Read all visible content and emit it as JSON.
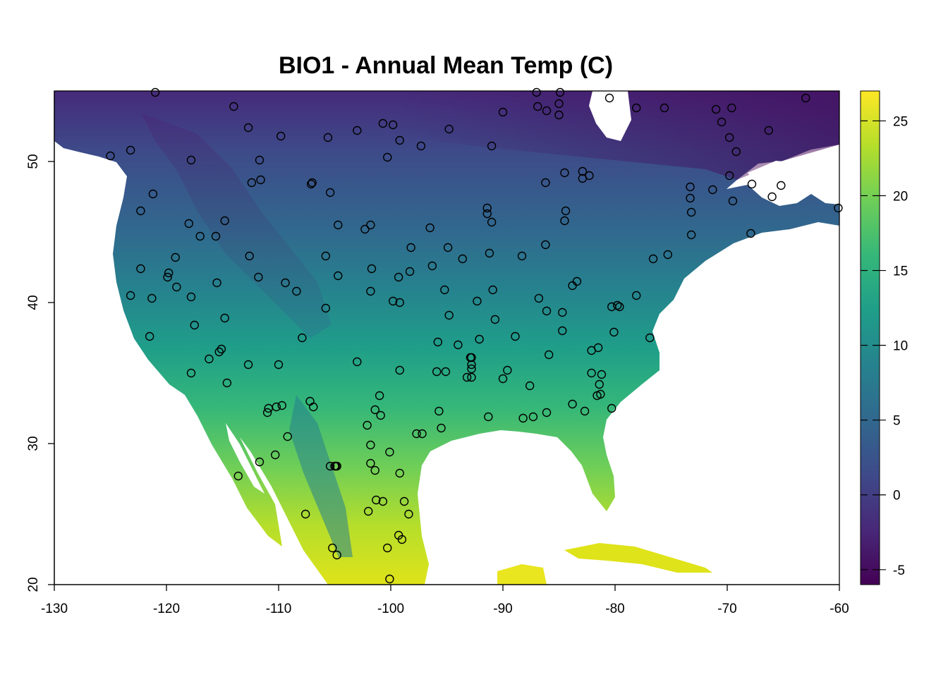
{
  "title": "BIO1 - Annual Mean Temp (C)",
  "chart_data": {
    "type": "scatter",
    "title": "BIO1 - Annual Mean Temp (C)",
    "xlim": [
      -130,
      -60
    ],
    "ylim": [
      20,
      55
    ],
    "x_ticks": [
      -130,
      -120,
      -110,
      -100,
      -90,
      -80,
      -70,
      -60
    ],
    "y_ticks": [
      20,
      30,
      40,
      50
    ],
    "x_tick_labels": [
      "-130",
      "-120",
      "-110",
      "-100",
      "-90",
      "-80",
      "-70",
      "-60"
    ],
    "y_tick_labels": [
      "20",
      "30",
      "40",
      "50"
    ],
    "raster_variable": "Annual Mean Temp (C)",
    "colorbar": {
      "min": -6,
      "max": 27,
      "ticks": [
        -5,
        0,
        5,
        10,
        15,
        20,
        25
      ],
      "tick_labels": [
        "-5",
        "0",
        "5",
        "10",
        "15",
        "20",
        "25"
      ],
      "palette": [
        "#440154",
        "#482878",
        "#3e4a89",
        "#31688e",
        "#26828e",
        "#1f9e89",
        "#35b779",
        "#6ece58",
        "#b5de2b",
        "#fde725"
      ]
    },
    "points": [
      [
        -125.0,
        50.4
      ],
      [
        -123.2,
        50.8
      ],
      [
        -121.0,
        54.9
      ],
      [
        -114.0,
        53.9
      ],
      [
        -112.7,
        52.4
      ],
      [
        -111.7,
        50.1
      ],
      [
        -112.4,
        48.5
      ],
      [
        -111.6,
        48.7
      ],
      [
        -117.8,
        50.1
      ],
      [
        -121.2,
        47.7
      ],
      [
        -122.3,
        46.5
      ],
      [
        -118.0,
        45.6
      ],
      [
        -117.0,
        44.7
      ],
      [
        -115.6,
        44.7
      ],
      [
        -114.8,
        45.8
      ],
      [
        -109.8,
        51.8
      ],
      [
        -105.6,
        51.7
      ],
      [
        -103.0,
        52.2
      ],
      [
        -100.7,
        52.7
      ],
      [
        -99.8,
        52.6
      ],
      [
        -99.2,
        51.5
      ],
      [
        -100.3,
        50.3
      ],
      [
        -97.3,
        51.1
      ],
      [
        -94.8,
        52.3
      ],
      [
        -91.0,
        51.1
      ],
      [
        -90.0,
        53.5
      ],
      [
        -87.0,
        54.9
      ],
      [
        -84.9,
        54.9
      ],
      [
        -86.9,
        53.9
      ],
      [
        -86.1,
        53.6
      ],
      [
        -85.0,
        53.3
      ],
      [
        -80.5,
        54.5
      ],
      [
        -78.1,
        53.8
      ],
      [
        -75.6,
        53.8
      ],
      [
        -63.0,
        54.5
      ],
      [
        -71.0,
        53.7
      ],
      [
        -69.6,
        53.8
      ],
      [
        -70.5,
        52.8
      ],
      [
        -69.8,
        51.7
      ],
      [
        -69.2,
        50.7
      ],
      [
        -66.3,
        52.2
      ],
      [
        -85.0,
        54.1
      ],
      [
        -107.0,
        48.5
      ],
      [
        -107.1,
        48.4
      ],
      [
        -105.4,
        47.8
      ],
      [
        -104.7,
        45.5
      ],
      [
        -102.3,
        45.2
      ],
      [
        -101.8,
        45.5
      ],
      [
        -96.5,
        45.3
      ],
      [
        -91.4,
        46.7
      ],
      [
        -91.4,
        46.3
      ],
      [
        -91.0,
        45.7
      ],
      [
        -86.2,
        48.5
      ],
      [
        -84.5,
        49.2
      ],
      [
        -82.9,
        49.3
      ],
      [
        -82.9,
        48.8
      ],
      [
        -82.3,
        49.0
      ],
      [
        -84.4,
        46.5
      ],
      [
        -84.5,
        45.8
      ],
      [
        -86.2,
        44.1
      ],
      [
        -88.3,
        43.3
      ],
      [
        -91.2,
        43.5
      ],
      [
        -93.6,
        43.1
      ],
      [
        -94.9,
        43.9
      ],
      [
        -96.3,
        42.6
      ],
      [
        -98.2,
        43.9
      ],
      [
        -98.3,
        42.2
      ],
      [
        -99.3,
        41.8
      ],
      [
        -101.7,
        42.4
      ],
      [
        -101.8,
        40.8
      ],
      [
        -104.7,
        41.9
      ],
      [
        -105.8,
        43.3
      ],
      [
        -108.4,
        40.8
      ],
      [
        -109.4,
        41.4
      ],
      [
        -111.8,
        41.8
      ],
      [
        -112.6,
        43.3
      ],
      [
        -115.5,
        41.4
      ],
      [
        -114.8,
        38.9
      ],
      [
        -117.8,
        40.4
      ],
      [
        -117.5,
        38.4
      ],
      [
        -119.1,
        41.1
      ],
      [
        -119.9,
        41.8
      ],
      [
        -119.8,
        42.1
      ],
      [
        -119.2,
        43.2
      ],
      [
        -122.3,
        42.4
      ],
      [
        -123.2,
        40.5
      ],
      [
        -121.3,
        40.3
      ],
      [
        -121.5,
        37.6
      ],
      [
        -117.8,
        35.0
      ],
      [
        -116.2,
        36.0
      ],
      [
        -115.3,
        36.5
      ],
      [
        -115.1,
        36.7
      ],
      [
        -114.6,
        34.3
      ],
      [
        -112.7,
        35.6
      ],
      [
        -110.0,
        35.6
      ],
      [
        -107.9,
        37.5
      ],
      [
        -105.8,
        39.6
      ],
      [
        -103.0,
        35.8
      ],
      [
        -99.2,
        35.2
      ],
      [
        -99.2,
        40.0
      ],
      [
        -99.8,
        40.1
      ],
      [
        -95.2,
        40.9
      ],
      [
        -92.3,
        40.1
      ],
      [
        -90.9,
        40.9
      ],
      [
        -94.8,
        39.1
      ],
      [
        -95.8,
        37.2
      ],
      [
        -94.0,
        37.0
      ],
      [
        -92.1,
        37.4
      ],
      [
        -90.7,
        38.8
      ],
      [
        -88.9,
        37.6
      ],
      [
        -86.8,
        40.3
      ],
      [
        -86.1,
        39.4
      ],
      [
        -84.7,
        39.3
      ],
      [
        -84.7,
        38.0
      ],
      [
        -85.9,
        36.3
      ],
      [
        -83.8,
        41.2
      ],
      [
        -83.4,
        41.5
      ],
      [
        -80.3,
        39.7
      ],
      [
        -79.6,
        39.7
      ],
      [
        -79.8,
        39.8
      ],
      [
        -80.1,
        37.9
      ],
      [
        -81.5,
        36.8
      ],
      [
        -82.1,
        36.6
      ],
      [
        -78.1,
        40.5
      ],
      [
        -76.6,
        43.1
      ],
      [
        -75.3,
        43.4
      ],
      [
        -73.2,
        44.8
      ],
      [
        -73.2,
        46.4
      ],
      [
        -73.3,
        47.4
      ],
      [
        -73.3,
        48.2
      ],
      [
        -71.3,
        48.0
      ],
      [
        -69.8,
        49.0
      ],
      [
        -69.5,
        47.2
      ],
      [
        -67.8,
        48.4
      ],
      [
        -67.9,
        44.9
      ],
      [
        -66.0,
        47.5
      ],
      [
        -65.2,
        48.3
      ],
      [
        -60.1,
        46.7
      ],
      [
        -76.9,
        37.5
      ],
      [
        -95.9,
        35.1
      ],
      [
        -95.1,
        35.1
      ],
      [
        -93.2,
        34.7
      ],
      [
        -92.8,
        34.7
      ],
      [
        -92.8,
        35.3
      ],
      [
        -92.8,
        35.6
      ],
      [
        -92.8,
        36.1
      ],
      [
        -92.9,
        36.1
      ],
      [
        -90.0,
        34.6
      ],
      [
        -89.6,
        35.2
      ],
      [
        -87.6,
        34.1
      ],
      [
        -81.2,
        34.9
      ],
      [
        -81.4,
        34.2
      ],
      [
        -81.6,
        33.4
      ],
      [
        -81.3,
        33.5
      ],
      [
        -80.3,
        32.5
      ],
      [
        -82.7,
        32.3
      ],
      [
        -83.8,
        32.8
      ],
      [
        -86.1,
        32.2
      ],
      [
        -87.3,
        31.9
      ],
      [
        -88.2,
        31.8
      ],
      [
        -91.3,
        31.9
      ],
      [
        -95.7,
        32.3
      ],
      [
        -95.5,
        31.1
      ],
      [
        -97.7,
        30.7
      ],
      [
        -97.2,
        30.7
      ],
      [
        -101.0,
        33.4
      ],
      [
        -101.4,
        32.4
      ],
      [
        -100.9,
        32.0
      ],
      [
        -102.1,
        31.3
      ],
      [
        -101.8,
        29.9
      ],
      [
        -101.8,
        28.6
      ],
      [
        -101.4,
        28.1
      ],
      [
        -101.3,
        26.0
      ],
      [
        -100.7,
        25.9
      ],
      [
        -102.0,
        25.2
      ],
      [
        -100.1,
        29.4
      ],
      [
        -99.2,
        27.9
      ],
      [
        -98.8,
        25.9
      ],
      [
        -98.4,
        25.0
      ],
      [
        -99.3,
        23.5
      ],
      [
        -99.0,
        23.2
      ],
      [
        -100.3,
        22.6
      ],
      [
        -100.1,
        20.4
      ],
      [
        -105.2,
        22.6
      ],
      [
        -104.8,
        22.1
      ],
      [
        -104.8,
        28.4
      ],
      [
        -105.0,
        28.4
      ],
      [
        -104.9,
        28.4
      ],
      [
        -105.4,
        28.4
      ],
      [
        -107.2,
        33.0
      ],
      [
        -106.9,
        32.6
      ],
      [
        -109.7,
        32.7
      ],
      [
        -110.2,
        32.6
      ],
      [
        -110.9,
        32.5
      ],
      [
        -111.0,
        32.2
      ],
      [
        -109.2,
        30.5
      ],
      [
        -110.3,
        29.2
      ],
      [
        -111.7,
        28.7
      ],
      [
        -113.6,
        27.7
      ],
      [
        -107.6,
        25.0
      ],
      [
        -82.1,
        35.0
      ]
    ]
  }
}
